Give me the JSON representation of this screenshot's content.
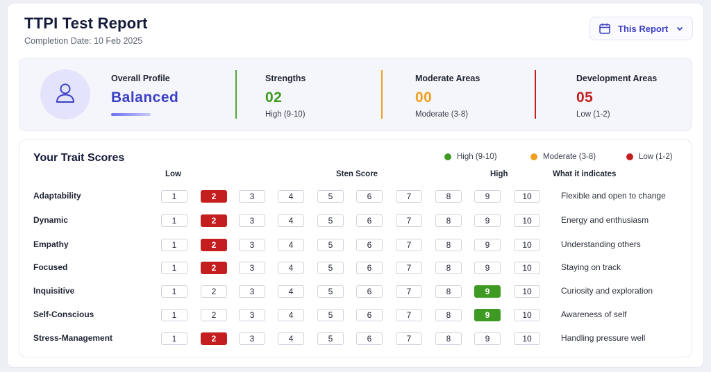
{
  "header": {
    "title": "TTPI Test Report",
    "completion": "Completion Date: 10 Feb 2025",
    "report_button": "This Report"
  },
  "summary": {
    "profile_label": "Overall Profile",
    "profile_value": "Balanced",
    "strengths_label": "Strengths",
    "strengths_value": "02",
    "strengths_sub": "High (9-10)",
    "moderate_label": "Moderate Areas",
    "moderate_value": "00",
    "moderate_sub": "Moderate (3-8)",
    "development_label": "Development Areas",
    "development_value": "05",
    "development_sub": "Low (1-2)"
  },
  "traits": {
    "title": "Your Trait Scores",
    "legend": [
      "High (9-10)",
      "Moderate (3-8)",
      "Low (1-2)"
    ],
    "col_low": "Low",
    "col_sten": "Sten Score",
    "col_high": "High",
    "col_indicates": "What it indicates",
    "scale": [
      "1",
      "2",
      "3",
      "4",
      "5",
      "6",
      "7",
      "8",
      "9",
      "10"
    ],
    "rows": [
      {
        "name": "Adaptability",
        "score": 2,
        "indicates": "Flexible and open to change"
      },
      {
        "name": "Dynamic",
        "score": 2,
        "indicates": "Energy and enthusiasm"
      },
      {
        "name": "Empathy",
        "score": 2,
        "indicates": "Understanding others"
      },
      {
        "name": "Focused",
        "score": 2,
        "indicates": "Staying on track"
      },
      {
        "name": "Inquisitive",
        "score": 9,
        "indicates": "Curiosity and exploration"
      },
      {
        "name": "Self-Conscious",
        "score": 9,
        "indicates": "Awareness of self"
      },
      {
        "name": "Stress-Management",
        "score": 2,
        "indicates": "Handling pressure well"
      }
    ]
  },
  "colors": {
    "accent": "#3b3fc4",
    "high": "#3f9a24",
    "moderate": "#f0a020",
    "low": "#c41e1e"
  },
  "icons": {
    "report_button": "calendar-icon",
    "avatar": "user-icon",
    "dropdown": "chevron-down-icon"
  }
}
